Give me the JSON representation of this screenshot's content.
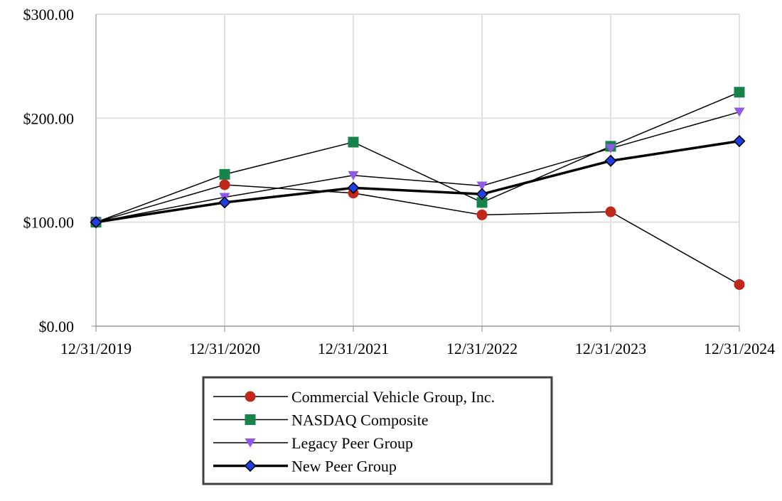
{
  "chart_data": {
    "type": "line",
    "categories": [
      "12/31/2019",
      "12/31/2020",
      "12/31/2021",
      "12/31/2022",
      "12/31/2023",
      "12/31/2024"
    ],
    "ylim": [
      0,
      300
    ],
    "yticks": [
      0,
      100,
      200,
      300
    ],
    "ytick_labels": [
      "$0.00",
      "$100.00",
      "$200.00",
      "$300.00"
    ],
    "grid": true,
    "legend_placement": "bottom",
    "series": [
      {
        "name": "Commercial Vehicle Group, Inc.",
        "values": [
          100,
          136,
          128,
          107,
          110,
          40
        ],
        "marker": "circle",
        "color": "#c0281c",
        "line_width": "thin"
      },
      {
        "name": "NASDAQ Composite",
        "values": [
          100,
          146,
          177,
          119,
          173,
          225
        ],
        "marker": "square",
        "color": "#17834a",
        "line_width": "thin"
      },
      {
        "name": "Legacy Peer Group",
        "values": [
          100,
          124,
          145,
          135,
          171,
          206
        ],
        "marker": "triangle-down",
        "color": "#8f5ae8",
        "line_width": "thin"
      },
      {
        "name": "New Peer Group",
        "values": [
          100,
          119,
          133,
          127,
          159,
          178
        ],
        "marker": "diamond",
        "color": "#1f3fe0",
        "line_width": "thick"
      }
    ]
  }
}
